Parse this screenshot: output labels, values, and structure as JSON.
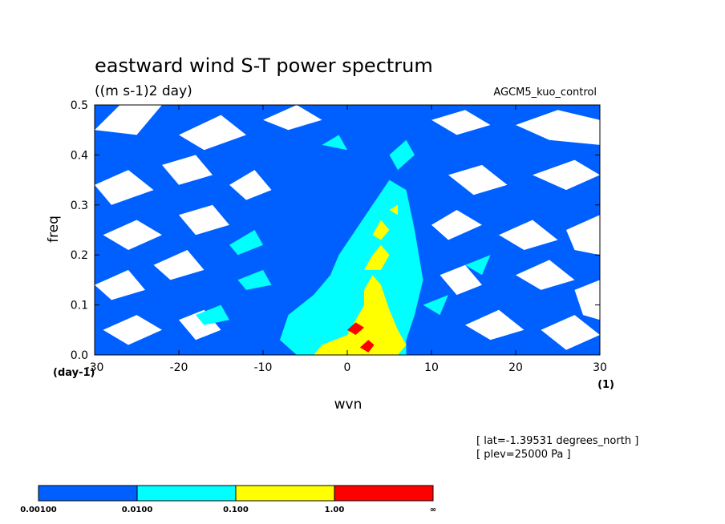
{
  "chart_data": {
    "type": "heatmap",
    "title": "eastward wind S-T power spectrum",
    "subtitle": "((m s-1)2 day)",
    "model_label": "AGCM5_kuo_control",
    "xlabel": "wvn",
    "ylabel": "freq",
    "x_unit": "(1)",
    "y_unit": "(day-1)",
    "xlim": [
      -30,
      30
    ],
    "ylim": [
      0,
      0.5
    ],
    "x_ticks": [
      "-30",
      "-20",
      "-10",
      "0",
      "10",
      "20",
      "30"
    ],
    "x_tick_values": [
      -30,
      -20,
      -10,
      0,
      10,
      20,
      30
    ],
    "y_ticks": [
      "0.0",
      "0.1",
      "0.2",
      "0.3",
      "0.4",
      "0.5"
    ],
    "y_tick_values": [
      0,
      0.1,
      0.2,
      0.3,
      0.4,
      0.5
    ],
    "notes": [
      "[ lat=-1.39531 degrees_north ]",
      "[ plev=25000 Pa ]"
    ],
    "levels": [
      {
        "label": "0.00100",
        "color": "#0060ff"
      },
      {
        "label": "0.0100",
        "color": "#00ffff"
      },
      {
        "label": "0.100",
        "color": "#ffff00"
      },
      {
        "label": "1.00",
        "color": "#ff0000"
      }
    ],
    "colorbar_end_label": "∞",
    "background_color": "#0060ff",
    "regions": [
      {
        "level": "0.0100",
        "color": "#00ffff",
        "points": [
          [
            -6,
            0
          ],
          [
            -8,
            0.03
          ],
          [
            -7,
            0.08
          ],
          [
            -4,
            0.12
          ],
          [
            -2,
            0.16
          ],
          [
            -1,
            0.2
          ],
          [
            1,
            0.25
          ],
          [
            3,
            0.3
          ],
          [
            5,
            0.35
          ],
          [
            7,
            0.33
          ],
          [
            8,
            0.25
          ],
          [
            9,
            0.15
          ],
          [
            8,
            0.08
          ],
          [
            7,
            0.03
          ],
          [
            7,
            0
          ]
        ]
      },
      {
        "level": "0.0100",
        "color": "#00ffff",
        "points": [
          [
            -13,
            0.15
          ],
          [
            -10,
            0.17
          ],
          [
            -9,
            0.14
          ],
          [
            -12,
            0.13
          ]
        ]
      },
      {
        "level": "0.0100",
        "color": "#00ffff",
        "points": [
          [
            -14,
            0.22
          ],
          [
            -11,
            0.25
          ],
          [
            -10,
            0.22
          ],
          [
            -13,
            0.2
          ]
        ]
      },
      {
        "level": "0.0100",
        "color": "#00ffff",
        "points": [
          [
            9,
            0.1
          ],
          [
            12,
            0.12
          ],
          [
            11,
            0.08
          ]
        ]
      },
      {
        "level": "0.0100",
        "color": "#00ffff",
        "points": [
          [
            14,
            0.18
          ],
          [
            17,
            0.2
          ],
          [
            16,
            0.16
          ]
        ]
      },
      {
        "level": "0.0100",
        "color": "#00ffff",
        "points": [
          [
            -18,
            0.08
          ],
          [
            -15,
            0.1
          ],
          [
            -14,
            0.07
          ],
          [
            -17,
            0.06
          ]
        ]
      },
      {
        "level": "0.0100",
        "color": "#00ffff",
        "points": [
          [
            5,
            0.4
          ],
          [
            7,
            0.43
          ],
          [
            8,
            0.4
          ],
          [
            6,
            0.37
          ]
        ]
      },
      {
        "level": "0.0100",
        "color": "#00ffff",
        "points": [
          [
            -3,
            0.42
          ],
          [
            -1,
            0.44
          ],
          [
            0,
            0.41
          ]
        ]
      },
      {
        "level": "0.100",
        "color": "#ffff00",
        "points": [
          [
            -4,
            0
          ],
          [
            -3,
            0.02
          ],
          [
            0,
            0.04
          ],
          [
            1,
            0.07
          ],
          [
            2,
            0.1
          ],
          [
            2,
            0.13
          ],
          [
            3,
            0.16
          ],
          [
            4,
            0.14
          ],
          [
            5,
            0.09
          ],
          [
            6,
            0.05
          ],
          [
            7,
            0.02
          ],
          [
            6,
            0
          ]
        ]
      },
      {
        "level": "0.100",
        "color": "#ffff00",
        "points": [
          [
            2,
            0.17
          ],
          [
            3,
            0.2
          ],
          [
            4,
            0.22
          ],
          [
            5,
            0.2
          ],
          [
            4,
            0.17
          ]
        ]
      },
      {
        "level": "0.100",
        "color": "#ffff00",
        "points": [
          [
            3,
            0.24
          ],
          [
            4,
            0.27
          ],
          [
            5,
            0.25
          ],
          [
            4,
            0.23
          ]
        ]
      },
      {
        "level": "0.100",
        "color": "#ffff00",
        "points": [
          [
            5,
            0.29
          ],
          [
            6,
            0.3
          ],
          [
            6,
            0.28
          ]
        ]
      },
      {
        "level": "1.00",
        "color": "#ff0000",
        "points": [
          [
            0,
            0.05
          ],
          [
            1,
            0.065
          ],
          [
            2,
            0.055
          ],
          [
            1,
            0.04
          ]
        ]
      },
      {
        "level": "1.00",
        "color": "#ff0000",
        "points": [
          [
            1.5,
            0.015
          ],
          [
            2.5,
            0.03
          ],
          [
            3.2,
            0.02
          ],
          [
            2.5,
            0.005
          ]
        ]
      }
    ],
    "gaps": [
      {
        "points": [
          [
            -30,
            0.45
          ],
          [
            -27,
            0.5
          ],
          [
            -22,
            0.5
          ],
          [
            -25,
            0.44
          ]
        ]
      },
      {
        "points": [
          [
            -20,
            0.44
          ],
          [
            -15,
            0.48
          ],
          [
            -12,
            0.44
          ],
          [
            -17,
            0.41
          ]
        ]
      },
      {
        "points": [
          [
            -10,
            0.47
          ],
          [
            -6,
            0.5
          ],
          [
            -3,
            0.47
          ],
          [
            -7,
            0.45
          ]
        ]
      },
      {
        "points": [
          [
            10,
            0.47
          ],
          [
            14,
            0.49
          ],
          [
            17,
            0.46
          ],
          [
            13,
            0.44
          ]
        ]
      },
      {
        "points": [
          [
            20,
            0.46
          ],
          [
            25,
            0.49
          ],
          [
            30,
            0.47
          ],
          [
            30,
            0.42
          ],
          [
            24,
            0.43
          ]
        ]
      },
      {
        "points": [
          [
            -30,
            0.34
          ],
          [
            -26,
            0.37
          ],
          [
            -23,
            0.33
          ],
          [
            -28,
            0.3
          ]
        ]
      },
      {
        "points": [
          [
            -22,
            0.38
          ],
          [
            -18,
            0.4
          ],
          [
            -16,
            0.36
          ],
          [
            -20,
            0.34
          ]
        ]
      },
      {
        "points": [
          [
            -14,
            0.34
          ],
          [
            -11,
            0.37
          ],
          [
            -9,
            0.33
          ],
          [
            -12,
            0.31
          ]
        ]
      },
      {
        "points": [
          [
            12,
            0.36
          ],
          [
            16,
            0.38
          ],
          [
            19,
            0.34
          ],
          [
            15,
            0.32
          ]
        ]
      },
      {
        "points": [
          [
            22,
            0.36
          ],
          [
            27,
            0.39
          ],
          [
            30,
            0.36
          ],
          [
            26,
            0.33
          ]
        ]
      },
      {
        "points": [
          [
            -29,
            0.24
          ],
          [
            -25,
            0.27
          ],
          [
            -22,
            0.24
          ],
          [
            -26,
            0.21
          ]
        ]
      },
      {
        "points": [
          [
            -20,
            0.28
          ],
          [
            -16,
            0.3
          ],
          [
            -14,
            0.26
          ],
          [
            -18,
            0.24
          ]
        ]
      },
      {
        "points": [
          [
            10,
            0.26
          ],
          [
            13,
            0.29
          ],
          [
            16,
            0.26
          ],
          [
            12,
            0.23
          ]
        ]
      },
      {
        "points": [
          [
            18,
            0.24
          ],
          [
            22,
            0.27
          ],
          [
            25,
            0.23
          ],
          [
            21,
            0.21
          ]
        ]
      },
      {
        "points": [
          [
            26,
            0.25
          ],
          [
            30,
            0.28
          ],
          [
            30,
            0.2
          ],
          [
            27,
            0.21
          ]
        ]
      },
      {
        "points": [
          [
            -30,
            0.14
          ],
          [
            -26,
            0.17
          ],
          [
            -24,
            0.13
          ],
          [
            -28,
            0.11
          ]
        ]
      },
      {
        "points": [
          [
            -23,
            0.18
          ],
          [
            -19,
            0.21
          ],
          [
            -17,
            0.17
          ],
          [
            -21,
            0.15
          ]
        ]
      },
      {
        "points": [
          [
            11,
            0.16
          ],
          [
            14,
            0.18
          ],
          [
            16,
            0.14
          ],
          [
            13,
            0.12
          ]
        ]
      },
      {
        "points": [
          [
            20,
            0.16
          ],
          [
            24,
            0.19
          ],
          [
            27,
            0.15
          ],
          [
            23,
            0.13
          ]
        ]
      },
      {
        "points": [
          [
            27,
            0.13
          ],
          [
            30,
            0.15
          ],
          [
            30,
            0.07
          ],
          [
            28,
            0.08
          ]
        ]
      },
      {
        "points": [
          [
            -29,
            0.05
          ],
          [
            -25,
            0.08
          ],
          [
            -22,
            0.05
          ],
          [
            -26,
            0.02
          ]
        ]
      },
      {
        "points": [
          [
            -20,
            0.07
          ],
          [
            -17,
            0.09
          ],
          [
            -15,
            0.05
          ],
          [
            -18,
            0.03
          ]
        ]
      },
      {
        "points": [
          [
            14,
            0.06
          ],
          [
            18,
            0.09
          ],
          [
            21,
            0.05
          ],
          [
            17,
            0.03
          ]
        ]
      },
      {
        "points": [
          [
            23,
            0.05
          ],
          [
            27,
            0.08
          ],
          [
            30,
            0.04
          ],
          [
            26,
            0.01
          ]
        ]
      }
    ]
  }
}
